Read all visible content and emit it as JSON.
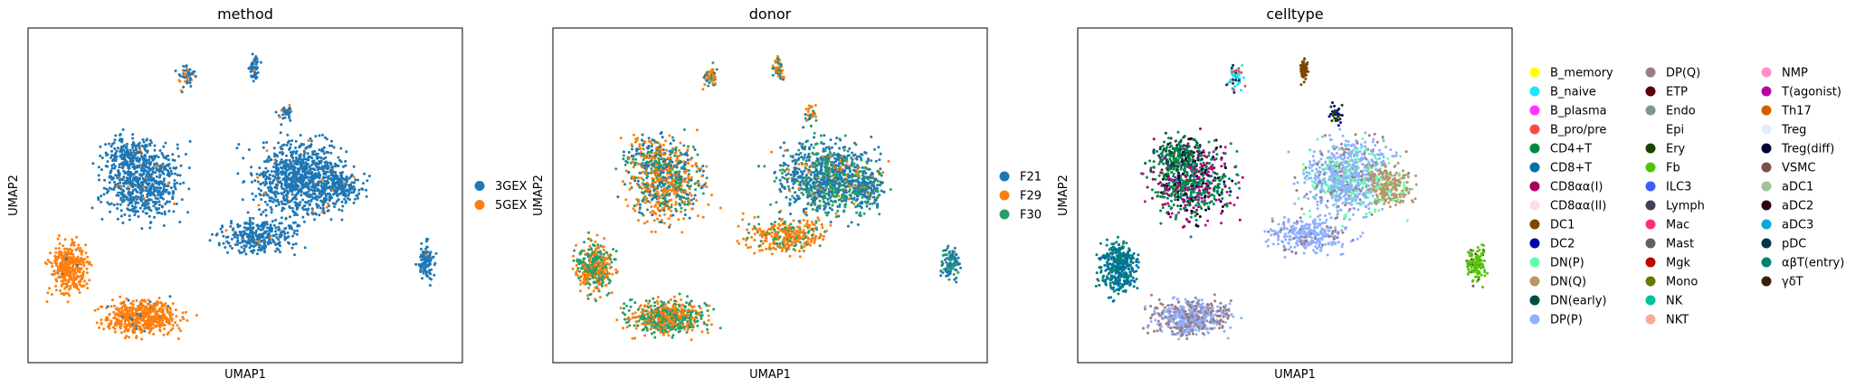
{
  "chart_data": [
    {
      "type": "scatter",
      "title": "method",
      "xlabel": "UMAP1",
      "ylabel": "UMAP2",
      "legend_position": "right",
      "series": [
        {
          "name": "3GEX",
          "color": "#1f77b4"
        },
        {
          "name": "5GEX",
          "color": "#ff7f0e"
        }
      ]
    },
    {
      "type": "scatter",
      "title": "donor",
      "xlabel": "UMAP1",
      "ylabel": "UMAP2",
      "legend_position": "right",
      "series": [
        {
          "name": "F21",
          "color": "#1f77b4"
        },
        {
          "name": "F29",
          "color": "#ff7f0e"
        },
        {
          "name": "F30",
          "color": "#279e68"
        }
      ]
    },
    {
      "type": "scatter",
      "title": "celltype",
      "xlabel": "UMAP1",
      "ylabel": "UMAP2",
      "legend_position": "right",
      "series": [
        {
          "name": "B_memory",
          "color": "#ffff00"
        },
        {
          "name": "B_naive",
          "color": "#1ce6ff"
        },
        {
          "name": "B_plasma",
          "color": "#ff34ff"
        },
        {
          "name": "B_pro/pre",
          "color": "#ff4a46"
        },
        {
          "name": "CD4+T",
          "color": "#008941"
        },
        {
          "name": "CD8+T",
          "color": "#006fa6"
        },
        {
          "name": "CD8αα(I)",
          "color": "#a30059"
        },
        {
          "name": "CD8αα(II)",
          "color": "#ffdbe5"
        },
        {
          "name": "DC1",
          "color": "#7a4900"
        },
        {
          "name": "DC2",
          "color": "#0000a6"
        },
        {
          "name": "DN(P)",
          "color": "#63ffac"
        },
        {
          "name": "DN(Q)",
          "color": "#b79762"
        },
        {
          "name": "DN(early)",
          "color": "#004d43"
        },
        {
          "name": "DP(P)",
          "color": "#8fb0ff"
        },
        {
          "name": "DP(Q)",
          "color": "#997d87"
        },
        {
          "name": "ETP",
          "color": "#5a0007"
        },
        {
          "name": "Endo",
          "color": "#809693"
        },
        {
          "name": "Epi",
          "color": "#fefffe"
        },
        {
          "name": "Ery",
          "color": "#1b4400"
        },
        {
          "name": "Fb",
          "color": "#4fc601"
        },
        {
          "name": "ILC3",
          "color": "#3b5dff"
        },
        {
          "name": "Lymph",
          "color": "#4a3b53"
        },
        {
          "name": "Mac",
          "color": "#ff2f80"
        },
        {
          "name": "Mast",
          "color": "#61615a"
        },
        {
          "name": "Mgk",
          "color": "#ba0900"
        },
        {
          "name": "Mono",
          "color": "#6b7900"
        },
        {
          "name": "NK",
          "color": "#00c2a0"
        },
        {
          "name": "NKT",
          "color": "#ffaa92"
        },
        {
          "name": "NMP",
          "color": "#ff90c9"
        },
        {
          "name": "T(agonist)",
          "color": "#b903aa"
        },
        {
          "name": "Th17",
          "color": "#d16100"
        },
        {
          "name": "Treg",
          "color": "#ddefff"
        },
        {
          "name": "Treg(diff)",
          "color": "#000035"
        },
        {
          "name": "VSMC",
          "color": "#7b4f4b"
        },
        {
          "name": "aDC1",
          "color": "#a1c299"
        },
        {
          "name": "aDC2",
          "color": "#300018"
        },
        {
          "name": "aDC3",
          "color": "#0aa6d8"
        },
        {
          "name": "pDC",
          "color": "#013349"
        },
        {
          "name": "αβT(entry)",
          "color": "#00846f"
        },
        {
          "name": "γδT",
          "color": "#372101"
        }
      ]
    }
  ]
}
